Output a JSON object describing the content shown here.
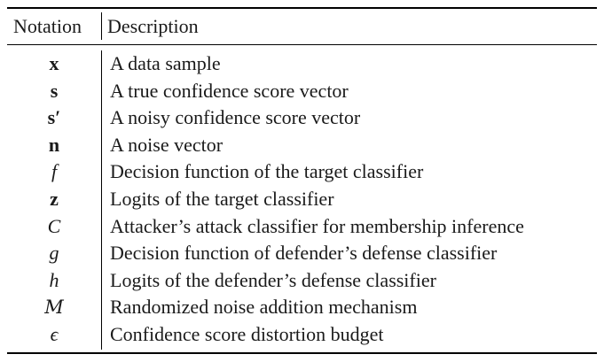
{
  "table": {
    "headers": {
      "notation": "Notation",
      "description": "Description"
    },
    "rows": [
      {
        "symbol": "x",
        "style": "bold",
        "description": "A data sample"
      },
      {
        "symbol": "s",
        "style": "bold",
        "description": "A true confidence score vector"
      },
      {
        "symbol": "s′",
        "style": "bold",
        "description": "A noisy confidence score vector"
      },
      {
        "symbol": "n",
        "style": "bold",
        "description": "A noise vector"
      },
      {
        "symbol": "f",
        "style": "italic",
        "description": "Decision function of the target classifier"
      },
      {
        "symbol": "z",
        "style": "bold",
        "description": "Logits of the target classifier"
      },
      {
        "symbol": "C",
        "style": "italic",
        "description": "Attacker’s attack classifier for membership inference"
      },
      {
        "symbol": "g",
        "style": "italic",
        "description": "Decision function of defender’s defense classifier"
      },
      {
        "symbol": "h",
        "style": "italic",
        "description": "Logits of the defender’s defense classifier"
      },
      {
        "symbol": "M",
        "style": "script",
        "description": "Randomized noise addition mechanism"
      },
      {
        "symbol": "ϵ",
        "style": "italic",
        "description": "Confidence score distortion budget"
      }
    ]
  }
}
